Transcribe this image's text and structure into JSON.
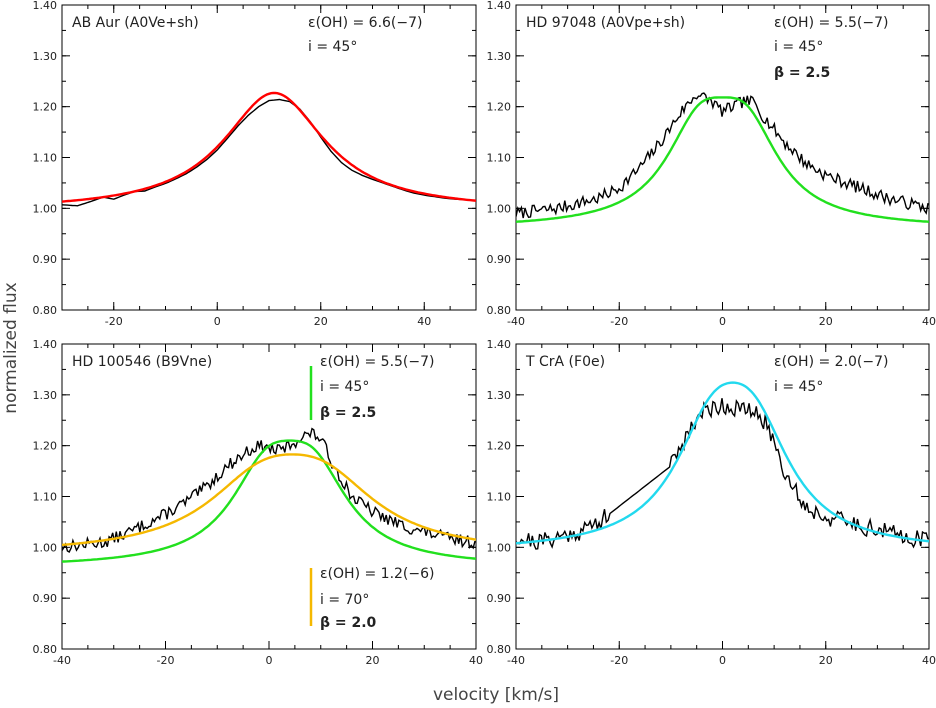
{
  "figure": {
    "xlabel": "velocity [km/s]",
    "ylabel": "normalized flux"
  },
  "chart_data": [
    {
      "type": "line",
      "panel": "top-left",
      "title": "AB Aur (A0Ve+sh)",
      "xlim": [
        -30,
        50
      ],
      "ylim": [
        0.8,
        1.4
      ],
      "xticks": [
        -20,
        0,
        20,
        40
      ],
      "yticks": [
        0.8,
        0.9,
        1.0,
        1.1,
        1.2,
        1.3,
        1.4
      ],
      "xtick_labels": [
        "-20",
        "0",
        "20",
        "40"
      ],
      "ytick_labels": [
        "0.80",
        "0.90",
        "1.00",
        "1.10",
        "1.20",
        "1.30",
        "1.40"
      ],
      "annotations": [
        "ε(OH) = 6.6(−7)",
        "i = 45°"
      ],
      "observed": {
        "color": "#000000",
        "noise": 0.0,
        "x": [
          -30,
          -27,
          -24,
          -22,
          -20,
          -18,
          -16,
          -14,
          -12,
          -10,
          -8,
          -6,
          -4,
          -2,
          0,
          2,
          4,
          6,
          8,
          10,
          12,
          14,
          16,
          18,
          20,
          22,
          24,
          26,
          28,
          30,
          32,
          34,
          36,
          38,
          40,
          42,
          44,
          46,
          48,
          50
        ],
        "y": [
          1.007,
          1.005,
          1.015,
          1.022,
          1.018,
          1.026,
          1.033,
          1.034,
          1.042,
          1.049,
          1.058,
          1.068,
          1.081,
          1.096,
          1.115,
          1.138,
          1.162,
          1.183,
          1.2,
          1.212,
          1.214,
          1.21,
          1.195,
          1.17,
          1.14,
          1.112,
          1.09,
          1.075,
          1.065,
          1.057,
          1.05,
          1.043,
          1.036,
          1.03,
          1.026,
          1.023,
          1.02,
          1.018,
          1.017,
          1.015
        ]
      },
      "series": [
        {
          "model": "lorentz",
          "color": "#ff0000",
          "base": 0.995,
          "peaks": [
            [
              11,
              0.232,
              12
            ]
          ]
        }
      ]
    },
    {
      "type": "line",
      "panel": "top-right",
      "title": "HD 97048 (A0Vpe+sh)",
      "xlim": [
        -40,
        40
      ],
      "ylim": [
        0.8,
        1.4
      ],
      "xticks": [
        -40,
        -20,
        0,
        20,
        40
      ],
      "yticks": [
        0.8,
        0.9,
        1.0,
        1.1,
        1.2,
        1.3,
        1.4
      ],
      "xtick_labels": [
        "-40",
        "-20",
        "0",
        "20",
        "40"
      ],
      "ytick_labels": [
        "0.80",
        "0.90",
        "1.00",
        "1.10",
        "1.20",
        "1.30",
        "1.40"
      ],
      "annotations": [
        "ε(OH) = 5.5(−7)",
        "i = 45°",
        "β = 2.5"
      ],
      "observed": {
        "color": "#000000",
        "noise": 0.012,
        "seed": 7,
        "x": [
          -40,
          -36,
          -32,
          -28,
          -24,
          -20,
          -16,
          -12,
          -8,
          -5,
          -2,
          0,
          2,
          4,
          6,
          8,
          12,
          16,
          20,
          24,
          28,
          32,
          36,
          40
        ],
        "y": [
          0.99,
          0.995,
          1.0,
          1.01,
          1.02,
          1.04,
          1.08,
          1.13,
          1.19,
          1.225,
          1.21,
          1.19,
          1.2,
          1.21,
          1.21,
          1.18,
          1.13,
          1.09,
          1.065,
          1.05,
          1.035,
          1.02,
          1.01,
          1.0
        ]
      },
      "series": [
        {
          "model": "lorentz",
          "color": "#22e01e",
          "base": 0.96,
          "peaks": [
            [
              -4.5,
              0.17,
              8
            ],
            [
              4.5,
              0.17,
              8
            ]
          ]
        }
      ]
    },
    {
      "type": "line",
      "panel": "bottom-left",
      "title": "HD 100546 (B9Vne)",
      "xlim": [
        -40,
        40
      ],
      "ylim": [
        0.8,
        1.4
      ],
      "xticks": [
        -40,
        -20,
        0,
        20,
        40
      ],
      "yticks": [
        0.8,
        0.9,
        1.0,
        1.1,
        1.2,
        1.3,
        1.4
      ],
      "xtick_labels": [
        "-40",
        "-20",
        "0",
        "20",
        "40"
      ],
      "ytick_labels": [
        "0.80",
        "0.90",
        "1.00",
        "1.10",
        "1.20",
        "1.30",
        "1.40"
      ],
      "annotations": [
        "ε(OH) = 5.5(−7)",
        "i = 45°",
        "β = 2.5",
        "ε(OH) = 1.2(−6)",
        "i = 70°",
        "β = 2.0"
      ],
      "observed": {
        "color": "#000000",
        "noise": 0.012,
        "seed": 13,
        "x": [
          -40,
          -36,
          -32,
          -28,
          -24,
          -20,
          -16,
          -12,
          -8,
          -4,
          -2,
          0,
          2,
          4,
          6,
          8,
          10,
          12,
          16,
          20,
          24,
          28,
          32,
          36,
          40
        ],
        "y": [
          1.0,
          1.005,
          1.01,
          1.025,
          1.045,
          1.065,
          1.09,
          1.12,
          1.16,
          1.19,
          1.2,
          1.195,
          1.19,
          1.2,
          1.215,
          1.225,
          1.215,
          1.17,
          1.1,
          1.07,
          1.05,
          1.035,
          1.025,
          1.015,
          1.01
        ]
      },
      "series": [
        {
          "model": "lorentz",
          "color": "#22e01e",
          "base": 0.96,
          "peaks": [
            [
              -0.5,
              0.16,
              8.5
            ],
            [
              8.5,
              0.16,
              8.5
            ]
          ]
        },
        {
          "model": "lorentz",
          "color": "#f5b800",
          "base": 0.985,
          "peaks": [
            [
              -1.5,
              0.12,
              13
            ],
            [
              10.5,
              0.12,
              13
            ]
          ]
        }
      ]
    },
    {
      "type": "line",
      "panel": "bottom-right",
      "title": "T CrA (F0e)",
      "xlim": [
        -40,
        40
      ],
      "ylim": [
        0.8,
        1.4
      ],
      "xticks": [
        -40,
        -20,
        0,
        20,
        40
      ],
      "yticks": [
        0.8,
        0.9,
        1.0,
        1.1,
        1.2,
        1.3,
        1.4
      ],
      "xtick_labels": [
        "-40",
        "-20",
        "0",
        "20",
        "40"
      ],
      "ytick_labels": [
        "0.80",
        "0.90",
        "1.00",
        "1.10",
        "1.20",
        "1.30",
        "1.40"
      ],
      "annotations": [
        "ε(OH) = 2.0(−7)",
        "i = 45°"
      ],
      "observed": {
        "color": "#000000",
        "noise": 0.018,
        "seed": 21,
        "x": [
          -40,
          -36,
          -32,
          -28,
          -24,
          -22,
          -10,
          -8,
          -6,
          -4,
          -2,
          0,
          2,
          4,
          6,
          8,
          10,
          12,
          16,
          20,
          24,
          28,
          32,
          36,
          40
        ],
        "y": [
          1.02,
          1.01,
          1.02,
          1.03,
          1.05,
          1.065,
          1.16,
          1.2,
          1.24,
          1.265,
          1.275,
          1.28,
          1.275,
          1.27,
          1.265,
          1.25,
          1.21,
          1.15,
          1.08,
          1.06,
          1.05,
          1.04,
          1.03,
          1.02,
          1.015
        ]
      },
      "series": [
        {
          "model": "lorentz",
          "color": "#22d9ee",
          "base": 0.99,
          "peaks": [
            [
              -2,
              0.2,
              9
            ],
            [
              6,
              0.2,
              9
            ]
          ]
        }
      ]
    }
  ]
}
